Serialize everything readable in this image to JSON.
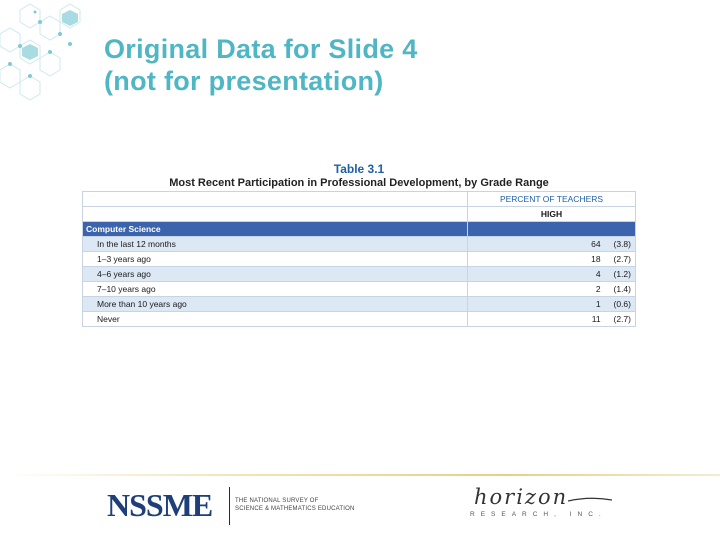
{
  "title": {
    "line1": "Original Data for Slide 4",
    "line2": "(not for presentation)"
  },
  "table": {
    "number": "Table 3.1",
    "name": "Most Recent Participation in Professional Development, by Grade Range",
    "col_header": "PERCENT OF TEACHERS",
    "sub_header": "HIGH",
    "section": "Computer Science",
    "rows": [
      {
        "label": "In the last 12 months",
        "pct": "64",
        "se": "(3.8)"
      },
      {
        "label": "1–3 years ago",
        "pct": "18",
        "se": "(2.7)"
      },
      {
        "label": "4–6 years ago",
        "pct": "4",
        "se": "(1.2)"
      },
      {
        "label": "7–10 years ago",
        "pct": "2",
        "se": "(1.4)"
      },
      {
        "label": "More than 10 years ago",
        "pct": "1",
        "se": "(0.6)"
      },
      {
        "label": "Never",
        "pct": "11",
        "se": "(2.7)"
      }
    ]
  },
  "footer": {
    "nssme": "NSSME",
    "nssme_sub_line1": "THE NATIONAL SURVEY OF",
    "nssme_sub_line2": "SCIENCE & MATHEMATICS EDUCATION",
    "horizon": "horizon",
    "horizon_sub": "RESEARCH, INC."
  },
  "colors": {
    "title": "#4fb6c3",
    "section_bar": "#3c64ac",
    "stripe": "#dde8f5",
    "table_number": "#1f5fa6"
  }
}
